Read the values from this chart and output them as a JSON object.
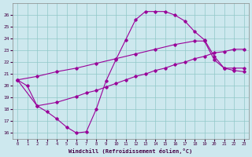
{
  "xlabel": "Windchill (Refroidissement éolien,°C)",
  "bg_color": "#cde8ee",
  "grid_color": "#90c8c8",
  "line_color": "#990099",
  "xlim": [
    -0.5,
    23.5
  ],
  "ylim": [
    15.5,
    27.0
  ],
  "yticks": [
    16,
    17,
    18,
    19,
    20,
    21,
    22,
    23,
    24,
    25,
    26
  ],
  "xticks": [
    0,
    1,
    2,
    3,
    4,
    5,
    6,
    7,
    8,
    9,
    10,
    11,
    12,
    13,
    14,
    15,
    16,
    17,
    18,
    19,
    20,
    21,
    22,
    23
  ],
  "line1_x": [
    0,
    1,
    2,
    3,
    4,
    5,
    6,
    7,
    8,
    9,
    10,
    11,
    12,
    13,
    14,
    15,
    16,
    17,
    18,
    19,
    20,
    21,
    22,
    23
  ],
  "line1_y": [
    20.5,
    20.0,
    18.3,
    17.8,
    17.2,
    16.5,
    16.0,
    16.1,
    18.0,
    20.4,
    22.2,
    23.9,
    25.6,
    26.3,
    26.3,
    26.3,
    26.0,
    25.5,
    24.6,
    23.9,
    22.5,
    21.5,
    21.3,
    21.2
  ],
  "line2_x": [
    0,
    2,
    4,
    6,
    8,
    10,
    12,
    14,
    16,
    18,
    19,
    20,
    21,
    22,
    23
  ],
  "line2_y": [
    20.5,
    20.8,
    21.2,
    21.5,
    21.9,
    22.3,
    22.7,
    23.1,
    23.5,
    23.8,
    23.8,
    22.2,
    21.5,
    21.5,
    21.5
  ],
  "line3_x": [
    0,
    2,
    4,
    6,
    7,
    8,
    9,
    10,
    11,
    12,
    13,
    14,
    15,
    16,
    17,
    18,
    19,
    20,
    21,
    22,
    23
  ],
  "line3_y": [
    20.5,
    18.3,
    18.6,
    19.1,
    19.4,
    19.6,
    19.9,
    20.2,
    20.5,
    20.8,
    21.0,
    21.3,
    21.5,
    21.8,
    22.0,
    22.3,
    22.5,
    22.8,
    22.9,
    23.1,
    23.1
  ]
}
